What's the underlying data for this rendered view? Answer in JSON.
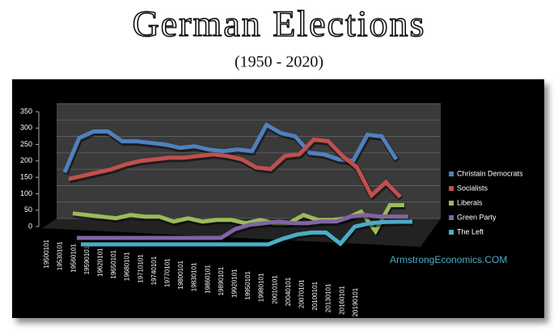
{
  "chart_data": {
    "type": "line",
    "title": "German Elections",
    "subtitle": "(1950 - 2020)",
    "annotation": "ArmstrongEconomics.COM",
    "categories": [
      "19500101",
      "19530101",
      "19560101",
      "19590101",
      "19620101",
      "19650101",
      "19680101",
      "19710101",
      "19740101",
      "19770101",
      "19800101",
      "19830101",
      "19860101",
      "19890101",
      "19920101",
      "19950101",
      "19980101",
      "20010101",
      "20040101",
      "20070101",
      "20100101",
      "20130101",
      "20160101",
      "20190101"
    ],
    "series": [
      {
        "name": "Christain Democrats",
        "color": "#4f81bd",
        "values": [
          140,
          245,
          265,
          265,
          235,
          235,
          230,
          225,
          215,
          220,
          210,
          205,
          210,
          205,
          285,
          260,
          250,
          200,
          195,
          180,
          175,
          255,
          250,
          180
        ]
      },
      {
        "name": "Socialists",
        "color": "#c0504d",
        "values": [
          140,
          150,
          160,
          170,
          185,
          195,
          200,
          205,
          205,
          210,
          215,
          210,
          200,
          175,
          170,
          210,
          215,
          260,
          255,
          210,
          175,
          90,
          130,
          85
        ]
      },
      {
        "name": "Liberals",
        "color": "#9bbb59",
        "values": [
          55,
          50,
          45,
          40,
          50,
          45,
          45,
          30,
          40,
          30,
          35,
          35,
          25,
          35,
          25,
          25,
          50,
          35,
          35,
          40,
          60,
          0,
          80,
          80
        ]
      },
      {
        "name": "Green Party",
        "color": "#8064a2",
        "values": [
          0,
          0,
          0,
          0,
          0,
          0,
          0,
          0,
          0,
          0,
          0,
          27,
          40,
          45,
          50,
          45,
          45,
          50,
          50,
          65,
          70,
          65,
          65,
          65
        ]
      },
      {
        "name": "The Left",
        "color": "#4bacc6",
        "values": [
          0,
          0,
          0,
          0,
          0,
          0,
          0,
          0,
          0,
          0,
          0,
          0,
          0,
          0,
          17,
          30,
          36,
          36,
          2,
          54,
          64,
          68,
          69,
          69
        ]
      }
    ],
    "ylim": [
      0,
      350
    ],
    "yticks": [
      0,
      50,
      100,
      150,
      200,
      250,
      300,
      350
    ],
    "grid": true,
    "legend": "right"
  }
}
